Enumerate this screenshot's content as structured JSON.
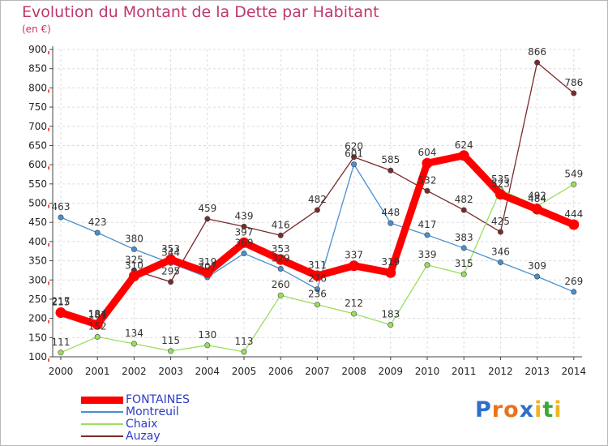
{
  "chart_data": {
    "type": "line",
    "title": "Evolution du Montant de la Dette par Habitant",
    "subtitle": "(en €)",
    "x": [
      "2000",
      "2001",
      "2002",
      "2003",
      "2004",
      "2005",
      "2006",
      "2007",
      "2008",
      "2009",
      "2010",
      "2011",
      "2012",
      "2013",
      "2014"
    ],
    "ylim": [
      100,
      900
    ],
    "yticks": [
      100,
      150,
      200,
      250,
      300,
      350,
      400,
      450,
      500,
      550,
      600,
      650,
      700,
      750,
      800,
      850,
      900
    ],
    "grid": true,
    "legend_position": "bottom-left",
    "series": [
      {
        "name": "FONTAINES",
        "color": "#ff0000",
        "values": [
          215,
          184,
          310,
          353,
          319,
          397,
          353,
          311,
          337,
          319,
          604,
          624,
          523,
          484,
          444
        ],
        "labels": [
          "215",
          "184",
          "310",
          "353",
          "319",
          "397",
          "353",
          "311",
          "337",
          "319",
          "604",
          "624",
          "523",
          "484",
          "444"
        ]
      },
      {
        "name": "Montreuil",
        "color": "#4a8fcf",
        "values": [
          463,
          423,
          380,
          344,
          307,
          369,
          329,
          276,
          601,
          448,
          417,
          383,
          346,
          309,
          269
        ],
        "labels": [
          "463",
          "423",
          "380",
          "344",
          "307",
          "369",
          "329",
          "276",
          "601",
          "448",
          "417",
          "383",
          "346",
          "309",
          "269"
        ]
      },
      {
        "name": "Chaix",
        "color": "#9ade5e",
        "values": [
          111,
          152,
          134,
          115,
          130,
          113,
          260,
          236,
          212,
          183,
          339,
          315,
          535,
          492,
          549
        ],
        "labels": [
          "111",
          "152",
          "134",
          "115",
          "130",
          "113",
          "260",
          "236",
          "212",
          "183",
          "339",
          "315",
          "535",
          "492",
          "549"
        ]
      },
      {
        "name": "Auzay",
        "color": "#7a2a2a",
        "values": [
          217,
          181,
          325,
          295,
          459,
          439,
          416,
          482,
          620,
          585,
          532,
          482,
          425,
          866,
          786
        ],
        "labels": [
          "217",
          "181",
          "325",
          "295",
          "459",
          "439",
          "416",
          "482",
          "620",
          "585",
          "532",
          "482",
          "425",
          "866",
          "786"
        ]
      }
    ]
  },
  "brand": {
    "letters": [
      "P",
      "r",
      "o",
      "x",
      "i",
      "t",
      "i"
    ],
    "colors": [
      "#2f6fc8",
      "#e8731e",
      "#e8731e",
      "#2f6fc8",
      "#f0b41e",
      "#3aa83a",
      "#f0b41e"
    ]
  }
}
